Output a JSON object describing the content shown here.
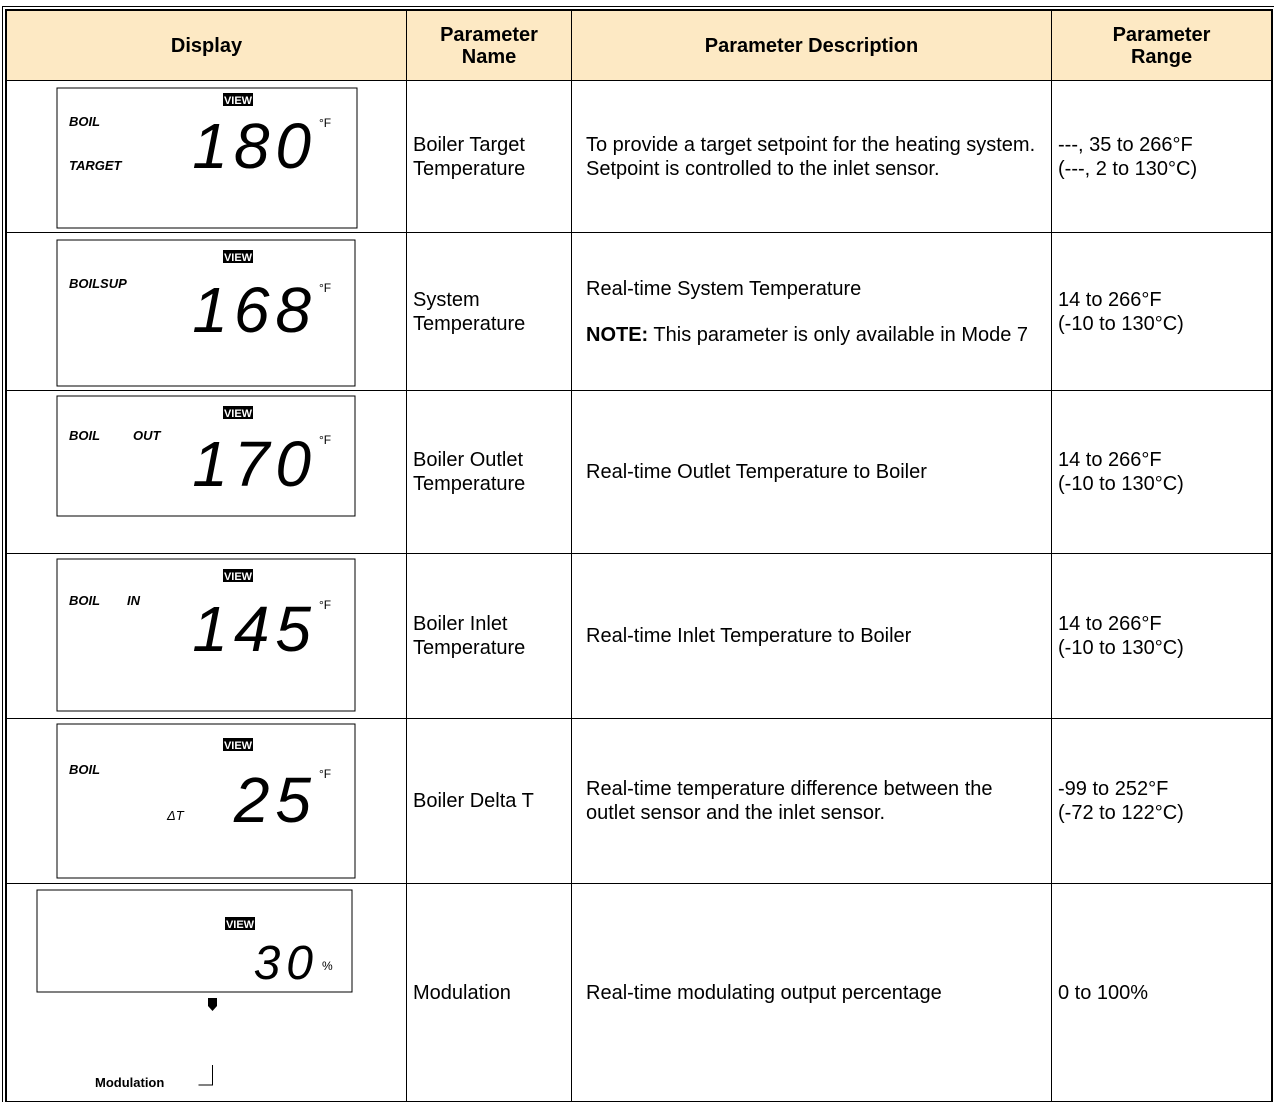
{
  "table": {
    "headers": [
      "Display",
      "Parameter Name",
      "Parameter Description",
      "Parameter Range"
    ],
    "rows": [
      {
        "display": {
          "view": "VIEW",
          "labels": [
            "BOIL",
            "TARGET"
          ],
          "reading": "180",
          "unit": "°F"
        },
        "name": "Boiler Target Temperature",
        "description": [
          "To provide a target setpoint for the heating system. Setpoint is controlled to the inlet sensor."
        ],
        "range": [
          "---, 35 to 266°F",
          "(---, 2 to 130°C)"
        ]
      },
      {
        "display": {
          "view": "VIEW",
          "labels": [
            "BOILSUP"
          ],
          "reading": "168",
          "unit": "°F"
        },
        "name": "System Temperature",
        "description": [
          "Real-time System Temperature"
        ],
        "note": {
          "label": "NOTE:",
          "text": "This parameter is only available in Mode 7"
        },
        "range": [
          "14 to 266°F",
          "(-10 to 130°C)"
        ]
      },
      {
        "display": {
          "view": "VIEW",
          "labels": [
            "BOIL",
            "OUT"
          ],
          "reading": "170",
          "unit": "°F"
        },
        "name": "Boiler Outlet Temperature",
        "description": [
          "Real-time Outlet Temperature to Boiler"
        ],
        "range": [
          "14 to 266°F",
          "(-10 to 130°C)"
        ]
      },
      {
        "display": {
          "view": "VIEW",
          "labels": [
            "BOIL",
            "IN"
          ],
          "reading": "145",
          "unit": "°F"
        },
        "name": "Boiler Inlet Temperature",
        "description": [
          "Real-time Inlet Temperature to Boiler"
        ],
        "range": [
          "14 to 266°F",
          "(-10 to 130°C)"
        ]
      },
      {
        "display": {
          "view": "VIEW",
          "labels": [
            "BOIL",
            "ΔT"
          ],
          "reading": "25",
          "unit": "°F"
        },
        "name": "Boiler Delta T",
        "description": [
          "Real-time temperature difference between the outlet sensor and the inlet sensor."
        ],
        "range": [
          "-99 to 252°F",
          "(-72 to 122°C)"
        ]
      },
      {
        "display": {
          "view": "VIEW",
          "reading": "30",
          "unit": "%",
          "callout": "Modulation"
        },
        "name": "Modulation",
        "description": [
          "Real-time modulating output percentage"
        ],
        "range": [
          "0 to 100%"
        ]
      }
    ]
  }
}
